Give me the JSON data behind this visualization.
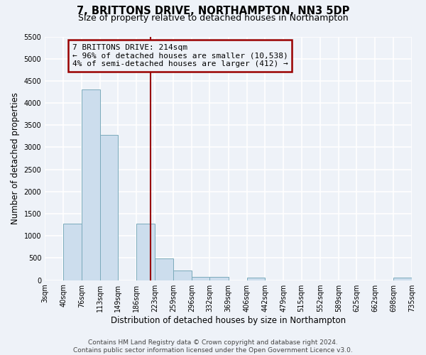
{
  "title": "7, BRITTONS DRIVE, NORTHAMPTON, NN3 5DP",
  "subtitle": "Size of property relative to detached houses in Northampton",
  "xlabel": "Distribution of detached houses by size in Northampton",
  "ylabel": "Number of detached properties",
  "bin_edges": [
    3,
    40,
    76,
    113,
    149,
    186,
    223,
    259,
    296,
    332,
    369,
    406,
    442,
    479,
    515,
    552,
    589,
    625,
    662,
    698,
    735
  ],
  "bar_heights": [
    0,
    1270,
    4300,
    3280,
    0,
    1280,
    490,
    210,
    80,
    70,
    0,
    50,
    0,
    0,
    0,
    0,
    0,
    0,
    0,
    50
  ],
  "bar_color": "#ccdded",
  "bar_edge_color": "#7aaabb",
  "vline_x": 214,
  "vline_color": "#990000",
  "annotation_line1": "7 BRITTONS DRIVE: 214sqm",
  "annotation_line2": "← 96% of detached houses are smaller (10,538)",
  "annotation_line3": "4% of semi-detached houses are larger (412) →",
  "annotation_box_color": "#990000",
  "ylim": [
    0,
    5500
  ],
  "yticks": [
    0,
    500,
    1000,
    1500,
    2000,
    2500,
    3000,
    3500,
    4000,
    4500,
    5000,
    5500
  ],
  "tick_labels": [
    "3sqm",
    "40sqm",
    "76sqm",
    "113sqm",
    "149sqm",
    "186sqm",
    "223sqm",
    "259sqm",
    "296sqm",
    "332sqm",
    "369sqm",
    "406sqm",
    "442sqm",
    "479sqm",
    "515sqm",
    "552sqm",
    "589sqm",
    "625sqm",
    "662sqm",
    "698sqm",
    "735sqm"
  ],
  "footer_line1": "Contains HM Land Registry data © Crown copyright and database right 2024.",
  "footer_line2": "Contains public sector information licensed under the Open Government Licence v3.0.",
  "background_color": "#eef2f8",
  "grid_color": "#ffffff",
  "title_fontsize": 10.5,
  "subtitle_fontsize": 9,
  "axis_label_fontsize": 8.5,
  "tick_fontsize": 7,
  "footer_fontsize": 6.5,
  "annotation_fontsize": 8
}
